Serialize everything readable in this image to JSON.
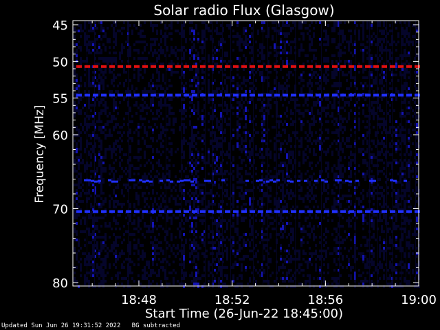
{
  "chart_data": {
    "type": "heatmap",
    "title": "Solar radio Flux (Glasgow)",
    "ylabel": "Frequency [MHz]",
    "xlabel": "Start Time (26-Jun-22 18:45:00)",
    "x_range": [
      "18:45",
      "19:00"
    ],
    "y_range_mhz": [
      45,
      80
    ],
    "y_ticks": [
      45,
      50,
      55,
      60,
      70,
      80
    ],
    "x_ticks": [
      "18:48",
      "18:52",
      "18:56",
      "19:00"
    ],
    "background_color": "#000000",
    "spectrogram_colors": [
      "#05052a",
      "#1414b4",
      "#2030ff",
      "#e01010"
    ],
    "features": [
      {
        "freq_mhz": 50.7,
        "color": "#e01010",
        "pattern": "dashed",
        "from": "18:45",
        "to": "19:00"
      },
      {
        "freq_mhz": 54.6,
        "color": "#2030ff",
        "pattern": "dashed",
        "from": "18:45",
        "to": "19:00"
      },
      {
        "freq_mhz": 66.2,
        "color": "#2030ff",
        "pattern": "patchy",
        "from": "18:45",
        "to": "19:00"
      },
      {
        "freq_mhz": 70.4,
        "color": "#2030ff",
        "pattern": "dashed",
        "from": "18:45",
        "to": "19:00"
      }
    ]
  },
  "footer": {
    "updated": "Updated Sun Jun 26 19:31:52 2022",
    "note": "BG subtracted"
  }
}
